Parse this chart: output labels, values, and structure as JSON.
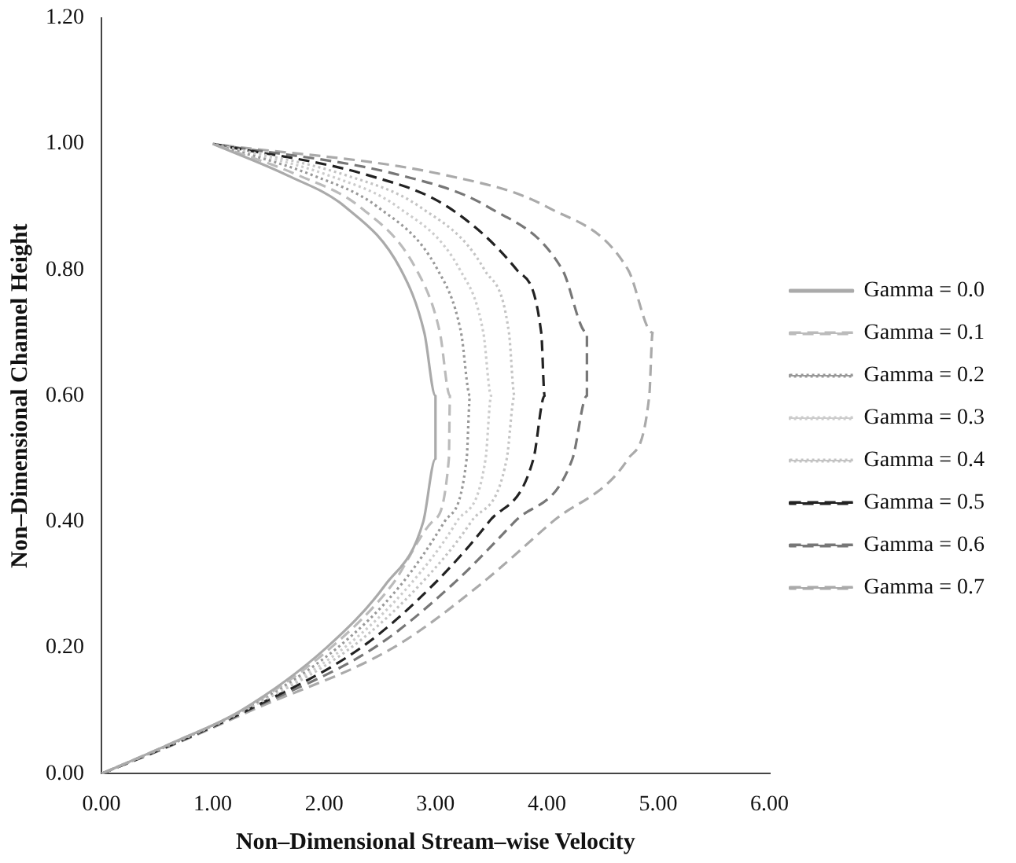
{
  "chart_data": {
    "type": "line",
    "xlabel": "Non–Dimensional Stream–wise Velocity",
    "ylabel": "Non–Dimensional Channel Height",
    "xlim": [
      0,
      6
    ],
    "ylim": [
      0,
      1.2
    ],
    "xticks": [
      {
        "value": 0,
        "label": "0.00"
      },
      {
        "value": 1,
        "label": "1.00"
      },
      {
        "value": 2,
        "label": "2.00"
      },
      {
        "value": 3,
        "label": "3.00"
      },
      {
        "value": 4,
        "label": "4.00"
      },
      {
        "value": 5,
        "label": "5.00"
      },
      {
        "value": 6,
        "label": "6.00"
      }
    ],
    "yticks": [
      {
        "value": 0,
        "label": "0.00"
      },
      {
        "value": 0.2,
        "label": "0.20"
      },
      {
        "value": 0.4,
        "label": "0.40"
      },
      {
        "value": 0.6,
        "label": "0.60"
      },
      {
        "value": 0.8,
        "label": "0.80"
      },
      {
        "value": 1,
        "label": "1.00"
      },
      {
        "value": 1.2,
        "label": "1.20"
      }
    ],
    "grid": false,
    "legend": "right",
    "marker": "none",
    "series": [
      {
        "name": "Gamma = 0.0",
        "color": "#aaaaaa",
        "line_style": "solid",
        "x": [
          0,
          0.65,
          1.25,
          2.02,
          2.55,
          2.89,
          3.0,
          3.0,
          2.9,
          2.69,
          2.19,
          1.67,
          1.0
        ],
        "values": [
          0,
          0.05,
          0.1,
          0.2,
          0.3,
          0.4,
          0.5,
          0.6,
          0.7,
          0.8,
          0.9,
          0.95,
          1
        ]
      },
      {
        "name": "Gamma = 0.1",
        "color": "#bbbbbb",
        "line_style": "dashed",
        "x": [
          0,
          0.65,
          1.26,
          2.06,
          2.61,
          2.97,
          3.12,
          3.13,
          3.04,
          2.83,
          2.32,
          1.77,
          1.0
        ],
        "values": [
          0,
          0.05,
          0.1,
          0.2,
          0.3,
          0.4,
          0.5,
          0.6,
          0.7,
          0.8,
          0.9,
          0.95,
          1
        ]
      },
      {
        "name": "Gamma = 0.2",
        "color": "#999999",
        "line_style": "dotted",
        "x": [
          0,
          0.66,
          1.26,
          2.12,
          2.69,
          3.08,
          3.28,
          3.31,
          3.23,
          3.02,
          2.48,
          1.9,
          1.0
        ],
        "values": [
          0,
          0.05,
          0.1,
          0.2,
          0.3,
          0.4,
          0.5,
          0.6,
          0.7,
          0.8,
          0.9,
          0.95,
          1
        ]
      },
      {
        "name": "Gamma = 0.3",
        "color": "#cccccc",
        "line_style": "dotted",
        "x": [
          0,
          0.66,
          1.27,
          2.18,
          2.77,
          3.19,
          3.45,
          3.5,
          3.43,
          3.22,
          2.66,
          2.04,
          1.0
        ],
        "values": [
          0,
          0.05,
          0.1,
          0.2,
          0.3,
          0.4,
          0.5,
          0.6,
          0.7,
          0.8,
          0.9,
          0.95,
          1
        ]
      },
      {
        "name": "Gamma = 0.4",
        "color": "#c4c4c4",
        "line_style": "dotted",
        "x": [
          0,
          0.67,
          1.28,
          2.24,
          2.86,
          3.32,
          3.64,
          3.71,
          3.66,
          3.44,
          2.86,
          2.2,
          1.0
        ],
        "values": [
          0,
          0.05,
          0.1,
          0.2,
          0.3,
          0.4,
          0.5,
          0.6,
          0.7,
          0.8,
          0.9,
          0.95,
          1
        ]
      },
      {
        "name": "Gamma = 0.5",
        "color": "#222222",
        "line_style": "dashed",
        "x": [
          0,
          0.68,
          1.3,
          2.33,
          2.98,
          3.48,
          3.88,
          3.98,
          3.95,
          3.73,
          3.11,
          2.4,
          1.0
        ],
        "values": [
          0,
          0.05,
          0.1,
          0.2,
          0.3,
          0.4,
          0.5,
          0.6,
          0.7,
          0.8,
          0.9,
          0.95,
          1
        ]
      },
      {
        "name": "Gamma = 0.6",
        "color": "#777777",
        "line_style": "dashed",
        "x": [
          0,
          0.69,
          1.31,
          2.45,
          3.15,
          3.71,
          4.23,
          4.36,
          4.36,
          4.14,
          3.47,
          2.69,
          1.0
        ],
        "values": [
          0,
          0.05,
          0.1,
          0.2,
          0.3,
          0.4,
          0.5,
          0.6,
          0.7,
          0.8,
          0.9,
          0.95,
          1
        ]
      },
      {
        "name": "Gamma = 0.7",
        "color": "#aaaaaa",
        "line_style": "dashed",
        "x": [
          0,
          0.7,
          1.34,
          2.62,
          3.4,
          4.05,
          4.73,
          4.92,
          4.95,
          4.73,
          4.0,
          3.1,
          1.0
        ],
        "values": [
          0,
          0.05,
          0.1,
          0.2,
          0.3,
          0.4,
          0.5,
          0.6,
          0.7,
          0.8,
          0.9,
          0.95,
          1
        ]
      }
    ]
  }
}
